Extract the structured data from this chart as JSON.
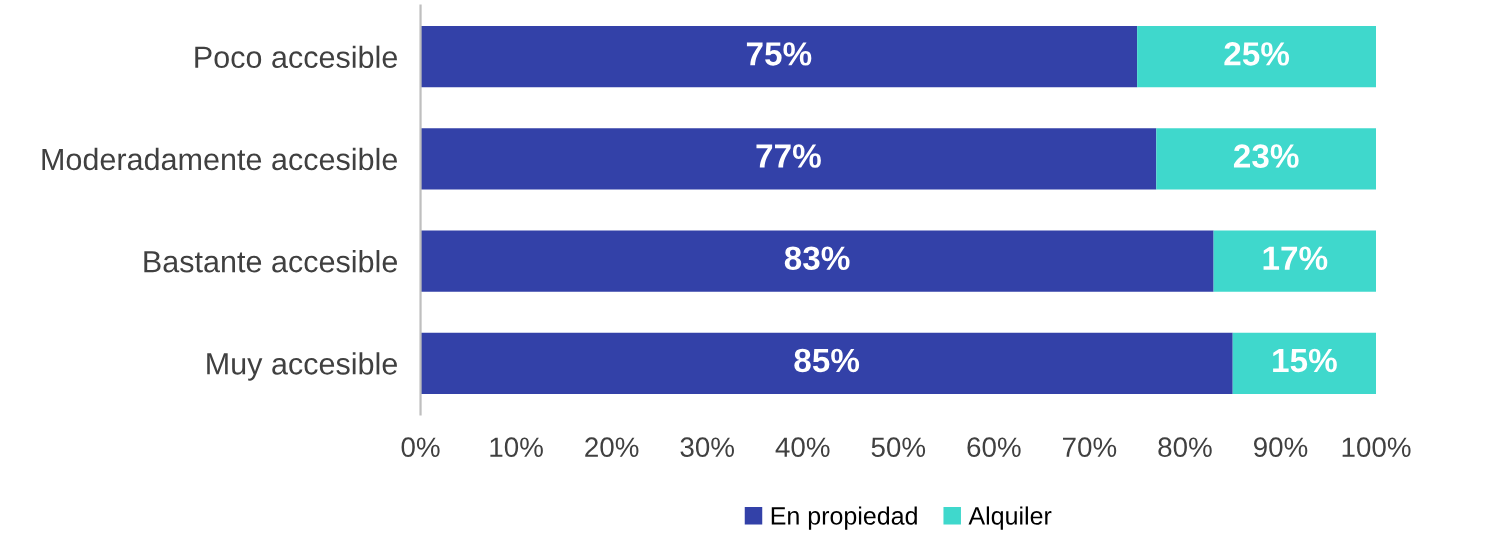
{
  "chart_data": {
    "type": "bar",
    "orientation": "horizontal",
    "stacked": true,
    "categories": [
      "Poco accesible",
      "Moderadamente accesible",
      "Bastante accesible",
      "Muy accesible"
    ],
    "series": [
      {
        "name": "En propiedad",
        "color": "#3341a8",
        "values": [
          75,
          77,
          83,
          85
        ],
        "value_labels": [
          "75%",
          "77%",
          "83%",
          "85%"
        ]
      },
      {
        "name": "Alquiler",
        "color": "#3fd8cc",
        "values": [
          25,
          23,
          17,
          15
        ],
        "value_labels": [
          "25%",
          "23%",
          "17%",
          "15%"
        ]
      }
    ],
    "xlim": [
      0,
      100
    ],
    "xticks": [
      {
        "value": 0,
        "label": "0%"
      },
      {
        "value": 10,
        "label": "10%"
      },
      {
        "value": 20,
        "label": "20%"
      },
      {
        "value": 30,
        "label": "30%"
      },
      {
        "value": 40,
        "label": "40%"
      },
      {
        "value": 50,
        "label": "50%"
      },
      {
        "value": 60,
        "label": "60%"
      },
      {
        "value": 70,
        "label": "70%"
      },
      {
        "value": 80,
        "label": "80%"
      },
      {
        "value": 90,
        "label": "90%"
      },
      {
        "value": 100,
        "label": "100%"
      }
    ],
    "grid": false,
    "legend": "bottom"
  }
}
